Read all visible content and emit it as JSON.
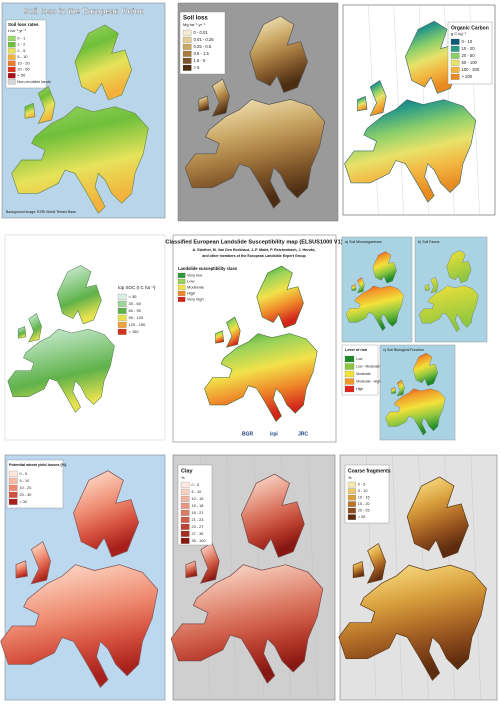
{
  "panels": [
    {
      "title": "Soil loss in the European Union",
      "legend_title": "Soil loss rates",
      "legend_unit": "t ha⁻¹ yr⁻¹",
      "legend": [
        {
          "label": "0 - 1",
          "color": "#9fd86a"
        },
        {
          "label": "1 - 2",
          "color": "#6fbf3a"
        },
        {
          "label": "2 - 5",
          "color": "#e6e35a"
        },
        {
          "label": "5 - 10",
          "color": "#f4b13c"
        },
        {
          "label": "10 - 20",
          "color": "#ee7a2c"
        },
        {
          "label": "20 - 50",
          "color": "#e0341f"
        },
        {
          "label": "> 50",
          "color": "#a8101a"
        },
        {
          "label": "Non-erodible lands",
          "color": "#d8d8d8"
        }
      ],
      "note": "Background image: ESRI World Terrain Base"
    },
    {
      "title": "Soil loss",
      "legend_unit": "Mg ha⁻¹ yr⁻¹",
      "legend": [
        {
          "label": "0 - 0.01",
          "color": "#f3ecd2"
        },
        {
          "label": "0.01 - 0.25",
          "color": "#e3cd98"
        },
        {
          "label": "0.25 - 0.5",
          "color": "#c9a765"
        },
        {
          "label": "0.5 - 1.5",
          "color": "#a97d42"
        },
        {
          "label": "1.5 - 5",
          "color": "#7c5328"
        },
        {
          "label": "> 5",
          "color": "#4c2d12"
        }
      ]
    },
    {
      "title": "Organic Carbon",
      "legend_unit": "g C kg⁻¹",
      "legend": [
        {
          "label": "0 - 10",
          "color": "#0a5a78"
        },
        {
          "label": "10 - 20",
          "color": "#2a9a86"
        },
        {
          "label": "20 - 50",
          "color": "#8ccf6a"
        },
        {
          "label": "50 - 100",
          "color": "#e8e26a"
        },
        {
          "label": "100 - 200",
          "color": "#f2b640"
        },
        {
          "label": "> 200",
          "color": "#e88a20"
        }
      ]
    },
    {
      "title": "top SOC (t C ha⁻¹)",
      "legend": [
        {
          "label": "< 30",
          "color": "#d7f0e6"
        },
        {
          "label": "30 - 60",
          "color": "#9ed49a"
        },
        {
          "label": "60 - 90",
          "color": "#5fb24a"
        },
        {
          "label": "90 - 120",
          "color": "#e9e24f"
        },
        {
          "label": "120 - 150",
          "color": "#f2a23a"
        },
        {
          "label": "> 150",
          "color": "#d2321f"
        }
      ]
    },
    {
      "title": "Classified European Landslide Susceptibility map (ELSUS1000 V1)",
      "authors": [
        "A. Günther, M. Van Den Eeckhaut, J.-P. Malet, P. Reichenbach, J. Hervás,",
        "and other members of the European Landslide Expert Group"
      ],
      "legend_title": "Landslide susceptibility class",
      "legend": [
        {
          "label": "Very low",
          "color": "#2e9a3a"
        },
        {
          "label": "Low",
          "color": "#9bd35a"
        },
        {
          "label": "Moderate",
          "color": "#f2e24a"
        },
        {
          "label": "High",
          "color": "#ef8a2a"
        },
        {
          "label": "Very high",
          "color": "#d2261c"
        }
      ],
      "logos": [
        "BGR",
        "irpi",
        "JRC"
      ]
    },
    {
      "maps": [
        "a) Soil Microorganisms",
        "b) Soil Fauna",
        "c) Soil Biological Function"
      ],
      "legend_title": "Level of risk",
      "legend": [
        {
          "label": "Low",
          "color": "#1f8a2a"
        },
        {
          "label": "Low - Moderate",
          "color": "#8cc63f"
        },
        {
          "label": "Moderate",
          "color": "#f2e23a"
        },
        {
          "label": "Moderate - High",
          "color": "#f29a2a"
        },
        {
          "label": "High",
          "color": "#e0261c"
        }
      ]
    },
    {
      "title": "Potential wheat yield losses (%)",
      "legend": [
        {
          "label": "0 - 5",
          "color": "#fde6dc"
        },
        {
          "label": "5 - 10",
          "color": "#f8bca6"
        },
        {
          "label": "10 - 20",
          "color": "#ee8a70"
        },
        {
          "label": "20 - 30",
          "color": "#d5513e"
        },
        {
          "label": "> 30",
          "color": "#a8201c"
        }
      ]
    },
    {
      "title": "Clay",
      "legend_unit": "%",
      "legend": [
        {
          "label": "0 - 5",
          "color": "#fbe9e2"
        },
        {
          "label": "5 - 10",
          "color": "#f6d0c2"
        },
        {
          "label": "10 - 15",
          "color": "#efb5a2"
        },
        {
          "label": "15 - 18",
          "color": "#e69884"
        },
        {
          "label": "18 - 21",
          "color": "#dc7b66"
        },
        {
          "label": "21 - 23",
          "color": "#cf5f4b"
        },
        {
          "label": "23 - 27",
          "color": "#bd4433"
        },
        {
          "label": "27 - 35",
          "color": "#a42c20"
        },
        {
          "label": "35 - 100",
          "color": "#861712"
        }
      ]
    },
    {
      "title": "Coarse fragments",
      "legend_unit": "%",
      "legend": [
        {
          "label": "0 - 5",
          "color": "#f7e8b0"
        },
        {
          "label": "5 - 10",
          "color": "#eec86a"
        },
        {
          "label": "10 - 15",
          "color": "#d9a03e"
        },
        {
          "label": "15 - 20",
          "color": "#b8742a"
        },
        {
          "label": "20 - 25",
          "color": "#8d4c1c"
        },
        {
          "label": "> 25",
          "color": "#5e2c10"
        }
      ]
    }
  ]
}
